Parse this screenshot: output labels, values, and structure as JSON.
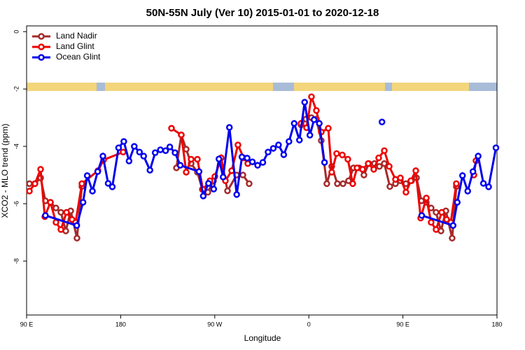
{
  "chart_data": {
    "type": "line",
    "title": "50N-55N July (Ver 10)   2015-01-01 to 2020-12-18",
    "x_label": "Longitude",
    "y_label": "XCO2 - MLO trend (ppm)",
    "xlim": [
      90,
      540
    ],
    "xticks": [
      {
        "value": 90,
        "label": "90 E"
      },
      180,
      {
        "value": 270,
        "label": "90 W"
      },
      {
        "value": 360,
        "label": "0"
      },
      {
        "value": 450,
        "label": "90 E"
      },
      {
        "value": 540,
        "label": "180"
      }
    ],
    "ylim": [
      -9.88,
      0.2
    ],
    "yticks": [
      0,
      -2,
      -4,
      -6,
      -8
    ],
    "grid": false,
    "legend": "top-left",
    "series": [
      {
        "name": "Land Nadir",
        "color": "#a52a2a",
        "x": [
          92.7,
          98.0,
          103.4,
          108.0,
          112.8,
          118.1,
          122.8,
          127.5,
          132.2,
          138.2,
          142.9,
          190.0,
          233.3,
          238.0,
          242.7,
          247.4,
          253.4,
          258.1,
          263.4,
          268.8,
          276.1,
          282.2,
          290.9,
          296.9,
          302.9,
          330.0,
          352.5,
          357.2,
          362.5,
          367.2,
          371.9,
          377.2,
          381.9,
          387.3,
          392.7,
          398.0,
          402.7,
          408.1,
          412.7,
          417.4,
          422.8,
          427.5,
          432.2,
          437.5,
          442.9,
          447.6,
          452.9,
          458.3,
          463.0,
          467.7,
          472.4,
          477.0,
          481.7,
          486.4,
          491.1,
          497.1,
          501.1
        ],
        "values": [
          -5.3,
          -5.3,
          -5.1,
          -5.9,
          -5.95,
          -6.15,
          -6.3,
          -6.95,
          -6.25,
          -7.2,
          -5.4,
          null,
          -4.75,
          -3.6,
          -4.1,
          -4.6,
          -4.9,
          -5.5,
          -5.6,
          -5.2,
          -4.4,
          -5.55,
          -5.0,
          -5.0,
          -5.3,
          null,
          -3.25,
          -3.05,
          -3.0,
          -3.05,
          -3.8,
          -5.3,
          -4.7,
          -5.3,
          -5.3,
          -5.2,
          -4.75,
          -4.75,
          -5.0,
          -4.6,
          -4.6,
          -4.7,
          -4.6,
          -5.4,
          -5.3,
          -5.2,
          -5.3,
          -5.2,
          -5.1,
          -5.9,
          -5.95,
          -6.15,
          -6.3,
          -6.95,
          -6.25,
          -7.2,
          -5.4
        ]
      },
      {
        "name": "Land Glint",
        "color": "#ee0000",
        "x": [
          92.7,
          98.0,
          103.4,
          107.4,
          112.8,
          118.1,
          122.8,
          128.2,
          133.5,
          136.9,
          142.9,
          158.3,
          163.7,
          182.4,
          200.0,
          228.6,
          238.0,
          242.7,
          247.4,
          253.4,
          258.7,
          265.4,
          270.1,
          276.1,
          280.2,
          286.2,
          292.2,
          297.6,
          301.6,
          330.0,
          352.5,
          357.8,
          362.5,
          367.2,
          371.9,
          378.6,
          381.9,
          386.6,
          392.0,
          397.3,
          402.0,
          406.1,
          411.4,
          416.8,
          422.1,
          426.8,
          432.2,
          436.9,
          442.9,
          447.6,
          452.9,
          457.6,
          462.3,
          467.0,
          472.4,
          477.0,
          481.7,
          487.1,
          491.8,
          495.8,
          501.1,
          510.0,
          517.9,
          519.9
        ],
        "values": [
          -5.56,
          -5.3,
          -4.8,
          -6.45,
          -5.95,
          -6.65,
          -6.9,
          -6.3,
          -6.55,
          -6.65,
          -5.3,
          -4.85,
          -4.47,
          -4.2,
          null,
          -3.37,
          -3.6,
          -4.9,
          -4.45,
          -4.45,
          -5.5,
          -5.2,
          -5.05,
          -4.4,
          -5.2,
          -4.85,
          -3.95,
          -4.4,
          -4.6,
          null,
          -3.2,
          -3.35,
          -2.27,
          -2.75,
          -3.5,
          -3.37,
          -4.9,
          -4.25,
          -4.3,
          -4.45,
          -5.3,
          -4.75,
          -4.8,
          -4.6,
          -4.8,
          -4.4,
          -4.15,
          -4.7,
          -5.15,
          -5.1,
          -5.6,
          -5.2,
          -4.85,
          -6.5,
          -5.8,
          -6.65,
          -6.9,
          -6.3,
          -6.55,
          -6.65,
          -5.3,
          null,
          -5.0,
          -4.5
        ]
      },
      {
        "name": "Ocean Glint",
        "color": "#0000ee",
        "x": [
          108,
          138,
          144,
          148,
          153,
          158,
          163,
          168,
          172,
          178,
          183,
          188,
          193,
          198,
          202,
          208,
          213,
          218,
          223,
          227,
          232,
          237,
          255,
          259,
          264,
          269,
          274,
          278,
          284,
          291,
          296,
          301,
          306,
          311,
          316,
          321,
          326,
          331,
          336,
          341,
          346,
          351,
          356,
          361,
          365,
          370,
          375,
          400,
          430,
          450,
          468,
          498,
          502,
          507,
          512,
          517,
          522,
          527,
          532,
          539
        ],
        "values": [
          -6.41,
          -6.76,
          -5.95,
          -5.02,
          -5.56,
          -4.88,
          -4.34,
          -5.29,
          -5.41,
          -4.05,
          -3.83,
          -4.51,
          -4.0,
          -4.2,
          -4.34,
          -4.83,
          -4.22,
          -4.12,
          -4.15,
          -4.02,
          -4.22,
          -4.66,
          -4.88,
          -5.73,
          -5.29,
          -5.49,
          -4.44,
          -5.07,
          -3.34,
          -5.68,
          -4.37,
          -4.41,
          -4.54,
          -4.66,
          -4.56,
          -4.2,
          -4.07,
          -3.95,
          -4.29,
          -3.83,
          -3.2,
          -3.78,
          -2.46,
          -3.61,
          -3.07,
          -3.2,
          -4.56,
          null,
          -3.15,
          null,
          -6.41,
          -6.76,
          -5.95,
          -5.02,
          -5.56,
          -4.88,
          -4.34,
          -5.29,
          -5.41,
          -4.05
        ]
      }
    ]
  }
}
